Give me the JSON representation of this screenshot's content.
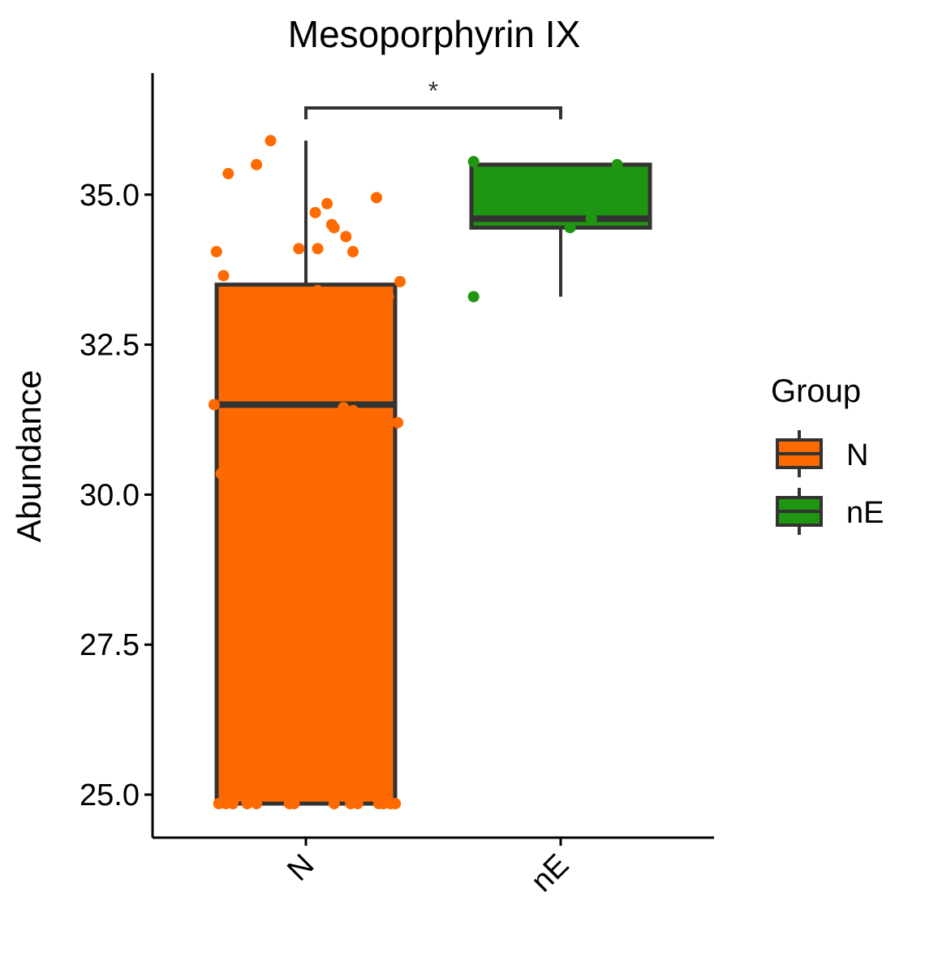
{
  "chart_data": {
    "type": "box",
    "title": "Mesoporphyrin IX",
    "xlabel": "",
    "ylabel": "Abundance",
    "ylim": [
      24.3,
      37.0
    ],
    "yticks": [
      25.0,
      27.5,
      30.0,
      32.5,
      35.0
    ],
    "ytick_labels": [
      "25.0",
      "27.5",
      "30.0",
      "32.5",
      "35.0"
    ],
    "categories": [
      "N",
      "nE"
    ],
    "grid": false,
    "legend": {
      "title": "Group",
      "position": "right",
      "entries": [
        {
          "label": "N",
          "color": "#FF6A00"
        },
        {
          "label": "nE",
          "color": "#1F9612"
        }
      ]
    },
    "significance": [
      {
        "groups": [
          "N",
          "nE"
        ],
        "label": "*",
        "y": 36.5
      }
    ],
    "series": [
      {
        "name": "N",
        "color": "#FF6A00",
        "box": {
          "q1": 24.85,
          "median": 31.5,
          "q3": 33.5,
          "whisker_low": 24.85,
          "whisker_high": 35.9
        },
        "points": [
          [
            -0.38,
            34.05
          ],
          [
            -0.35,
            33.65
          ],
          [
            -0.33,
            35.35
          ],
          [
            -0.21,
            35.5
          ],
          [
            -0.15,
            35.9
          ],
          [
            -0.03,
            34.1
          ],
          [
            0.04,
            34.7
          ],
          [
            0.05,
            34.1
          ],
          [
            0.09,
            34.85
          ],
          [
            0.11,
            34.5
          ],
          [
            0.12,
            34.45
          ],
          [
            0.17,
            34.3
          ],
          [
            0.2,
            34.05
          ],
          [
            0.3,
            34.95
          ],
          [
            0.35,
            33.3
          ],
          [
            0.4,
            33.55
          ],
          [
            0.05,
            33.4
          ],
          [
            -0.39,
            31.5
          ],
          [
            -0.36,
            30.35
          ],
          [
            -0.33,
            30.65
          ],
          [
            0.16,
            31.45
          ],
          [
            0.2,
            31.4
          ],
          [
            0.39,
            31.2
          ],
          [
            -0.37,
            24.85
          ],
          [
            -0.34,
            24.85
          ],
          [
            -0.31,
            24.85
          ],
          [
            -0.25,
            24.85
          ],
          [
            -0.21,
            24.85
          ],
          [
            -0.07,
            24.85
          ],
          [
            -0.05,
            24.85
          ],
          [
            0.12,
            24.85
          ],
          [
            0.19,
            24.85
          ],
          [
            0.22,
            24.85
          ],
          [
            0.31,
            24.85
          ],
          [
            0.33,
            24.85
          ],
          [
            0.36,
            24.85
          ],
          [
            0.38,
            24.85
          ]
        ]
      },
      {
        "name": "nE",
        "color": "#1F9612",
        "box": {
          "q1": 34.45,
          "median": 34.6,
          "q3": 35.5,
          "whisker_low": 33.3,
          "whisker_high": 35.5
        },
        "points": [
          [
            -0.37,
            35.55
          ],
          [
            -0.37,
            33.3
          ],
          [
            0.04,
            34.45
          ],
          [
            0.13,
            34.6
          ],
          [
            0.24,
            35.5
          ]
        ]
      }
    ]
  }
}
